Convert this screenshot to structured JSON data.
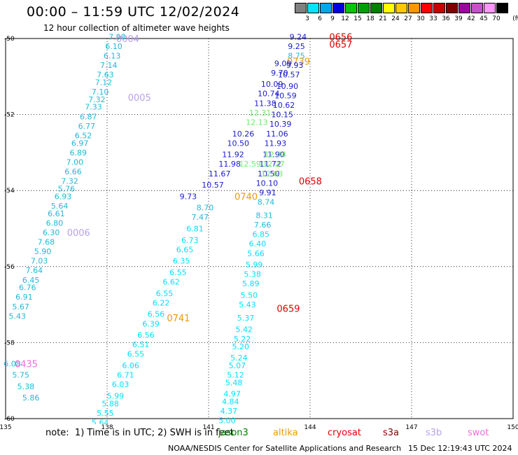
{
  "title": "00:00 – 11:59 UTC 12/02/2024",
  "subtitle": "12 hour collection of altimeter wave heights",
  "scale": {
    "unit": "(ft)",
    "bins": [
      {
        "label": "3",
        "color": "#808080"
      },
      {
        "label": "6",
        "color": "#00e5ff"
      },
      {
        "label": "9",
        "color": "#00a8e8"
      },
      {
        "label": "12",
        "color": "#0000e0"
      },
      {
        "label": "15",
        "color": "#00c800"
      },
      {
        "label": "18",
        "color": "#00a000"
      },
      {
        "label": "21",
        "color": "#008000"
      },
      {
        "label": "24",
        "color": "#ffff00"
      },
      {
        "label": "27",
        "color": "#ffc800"
      },
      {
        "label": "30",
        "color": "#ff9600"
      },
      {
        "label": "33",
        "color": "#ff0000"
      },
      {
        "label": "36",
        "color": "#c80000"
      },
      {
        "label": "39",
        "color": "#800000"
      },
      {
        "label": "42",
        "color": "#a000a0"
      },
      {
        "label": "45",
        "color": "#c850c8"
      },
      {
        "label": "70",
        "color": "#ff96ff"
      },
      {
        "label": "",
        "color": "#000000"
      }
    ]
  },
  "axes": {
    "x_ticks": [
      "135",
      "138",
      "141",
      "144",
      "147",
      "150"
    ],
    "y_ticks": [
      "-50",
      "-52",
      "-54",
      "-56",
      "-58",
      "-60"
    ]
  },
  "colors": {
    "swh6": "#22b8d8",
    "swh3": "#00e0ff",
    "swh9": "#1a1ad0",
    "swh12": "#6aee6a",
    "time_label": "#b8a0e8",
    "time_pink": "#ee6ed8",
    "time_orange": "#ee9a00",
    "time_red": "#e00000"
  },
  "tracks": [
    {
      "id": "swot-0004",
      "color_key": "swh6",
      "time_labels": [
        {
          "text": "0004",
          "lon": 138.95,
          "lat": -50.0,
          "color_key": "time_label"
        },
        {
          "text": "0005",
          "lon": 139.3,
          "lat": -51.55,
          "color_key": "time_label"
        },
        {
          "text": "0006",
          "lon": 137.5,
          "lat": -55.1,
          "color_key": "time_label"
        }
      ],
      "readings": [
        {
          "lon": 138.55,
          "lat": -49.95,
          "value": "7.90"
        },
        {
          "lon": 138.45,
          "lat": -50.2,
          "value": "6.10"
        },
        {
          "lon": 138.4,
          "lat": -50.45,
          "value": "6.13"
        },
        {
          "lon": 138.3,
          "lat": -50.7,
          "value": "7.14"
        },
        {
          "lon": 138.2,
          "lat": -50.95,
          "value": "7.63"
        },
        {
          "lon": 138.15,
          "lat": -51.15,
          "value": "7.12"
        },
        {
          "lon": 138.05,
          "lat": -51.4,
          "value": "7.10"
        },
        {
          "lon": 137.95,
          "lat": -51.6,
          "value": "7.32"
        },
        {
          "lon": 137.85,
          "lat": -51.8,
          "value": "7.33"
        },
        {
          "lon": 137.7,
          "lat": -52.05,
          "value": "6.87"
        },
        {
          "lon": 137.65,
          "lat": -52.3,
          "value": "6.77"
        },
        {
          "lon": 137.55,
          "lat": -52.55,
          "value": "6.52"
        },
        {
          "lon": 137.45,
          "lat": -52.75,
          "value": "6.97"
        },
        {
          "lon": 137.4,
          "lat": -53.0,
          "value": "6.89"
        },
        {
          "lon": 137.3,
          "lat": -53.25,
          "value": "7.00"
        },
        {
          "lon": 137.25,
          "lat": -53.5,
          "value": "6.66"
        },
        {
          "lon": 137.15,
          "lat": -53.75,
          "value": "7.32"
        },
        {
          "lon": 137.05,
          "lat": -53.95,
          "value": "5.76"
        },
        {
          "lon": 136.95,
          "lat": -54.15,
          "value": "6.93"
        },
        {
          "lon": 136.85,
          "lat": -54.4,
          "value": "5.64"
        },
        {
          "lon": 136.75,
          "lat": -54.6,
          "value": "6.61"
        },
        {
          "lon": 136.7,
          "lat": -54.85,
          "value": "6.80"
        },
        {
          "lon": 136.6,
          "lat": -55.1,
          "value": "6.30"
        },
        {
          "lon": 136.45,
          "lat": -55.35,
          "value": "7.68"
        },
        {
          "lon": 136.35,
          "lat": -55.6,
          "value": "5.90"
        },
        {
          "lon": 136.25,
          "lat": -55.85,
          "value": "7.03"
        },
        {
          "lon": 136.1,
          "lat": -56.1,
          "value": "7.64"
        },
        {
          "lon": 136.0,
          "lat": -56.35,
          "value": "6.45"
        },
        {
          "lon": 135.9,
          "lat": -56.55,
          "value": "6.76"
        },
        {
          "lon": 135.8,
          "lat": -56.8,
          "value": "6.91"
        },
        {
          "lon": 135.7,
          "lat": -57.05,
          "value": "5.67"
        },
        {
          "lon": 135.6,
          "lat": -57.3,
          "value": "5.43"
        }
      ]
    },
    {
      "id": "swot-0435",
      "color_key": "swh6",
      "time_labels": [
        {
          "text": "0435",
          "lon": 135.95,
          "lat": -58.55,
          "color_key": "time_pink"
        }
      ],
      "readings": [
        {
          "lon": 135.45,
          "lat": -58.55,
          "value": "6.08"
        },
        {
          "lon": 135.7,
          "lat": -58.85,
          "value": "5.75"
        },
        {
          "lon": 135.85,
          "lat": -59.15,
          "value": "5.38"
        },
        {
          "lon": 136.0,
          "lat": -59.45,
          "value": "5.86"
        }
      ]
    },
    {
      "id": "altika-0739",
      "color_key": "swh9",
      "time_labels": [
        {
          "text": "0741",
          "lon": 140.45,
          "lat": -57.35,
          "color_key": "time_orange"
        },
        {
          "text": "0740",
          "lon": 142.45,
          "lat": -54.15,
          "color_key": "time_orange"
        },
        {
          "text": "0739",
          "lon": 144.0,
          "lat": -50.6,
          "color_key": "time_orange"
        }
      ],
      "readings": [
        {
          "lon": 140.65,
          "lat": -54.15,
          "value": "9.73"
        },
        {
          "lon": 141.15,
          "lat": -54.45,
          "value": "8.70"
        },
        {
          "lon": 141.0,
          "lat": -54.7,
          "value": "7.47"
        },
        {
          "lon": 140.85,
          "lat": -55.0,
          "value": "6.81"
        },
        {
          "lon": 140.7,
          "lat": -55.3,
          "value": "6.73"
        },
        {
          "lon": 140.55,
          "lat": -55.55,
          "value": "6.65"
        },
        {
          "lon": 140.45,
          "lat": -55.85,
          "value": "6.35"
        },
        {
          "lon": 140.35,
          "lat": -56.15,
          "value": "6.55"
        },
        {
          "lon": 140.15,
          "lat": -56.4,
          "value": "6.62"
        },
        {
          "lon": 139.95,
          "lat": -56.7,
          "value": "6.55"
        },
        {
          "lon": 139.85,
          "lat": -56.95,
          "value": "6.22"
        },
        {
          "lon": 139.7,
          "lat": -57.25,
          "value": "6.56"
        },
        {
          "lon": 139.55,
          "lat": -57.5,
          "value": "6.39"
        },
        {
          "lon": 139.4,
          "lat": -57.8,
          "value": "6.56"
        },
        {
          "lon": 139.25,
          "lat": -58.05,
          "value": "6.51"
        },
        {
          "lon": 139.1,
          "lat": -58.3,
          "value": "6.55"
        },
        {
          "lon": 138.95,
          "lat": -58.6,
          "value": "6.06"
        },
        {
          "lon": 138.8,
          "lat": -58.85,
          "value": "6.71"
        },
        {
          "lon": 138.65,
          "lat": -59.1,
          "value": "6.03"
        },
        {
          "lon": 138.5,
          "lat": -59.4,
          "value": "5.99"
        },
        {
          "lon": 138.35,
          "lat": -59.6,
          "value": "5.88"
        },
        {
          "lon": 138.2,
          "lat": -59.85,
          "value": "5.55"
        },
        {
          "lon": 138.05,
          "lat": -60.1,
          "value": "5.64"
        },
        {
          "lon": 137.95,
          "lat": -60.3,
          "value": "5.52"
        },
        {
          "lon": 137.8,
          "lat": -60.55,
          "value": "4.64"
        }
      ]
    },
    {
      "id": "altika-0739-upper",
      "color_key": "swh9",
      "time_labels": [],
      "readings": [
        {
          "lon": 141.45,
          "lat": -53.85,
          "value": "10.57"
        },
        {
          "lon": 141.65,
          "lat": -53.55,
          "value": "11.67"
        },
        {
          "lon": 141.95,
          "lat": -53.3,
          "value": "11.98"
        },
        {
          "lon": 142.05,
          "lat": -53.05,
          "value": "11.92"
        },
        {
          "lon": 142.2,
          "lat": -52.75,
          "value": "10.50"
        },
        {
          "lon": 142.35,
          "lat": -52.5,
          "value": "10.26"
        },
        {
          "lon": 142.75,
          "lat": -52.2,
          "value": "12.13"
        },
        {
          "lon": 142.85,
          "lat": -51.95,
          "value": "12.31"
        },
        {
          "lon": 143.0,
          "lat": -51.7,
          "value": "11.38"
        },
        {
          "lon": 143.1,
          "lat": -51.45,
          "value": "10.74"
        },
        {
          "lon": 143.2,
          "lat": -51.2,
          "value": "10.09"
        },
        {
          "lon": 143.35,
          "lat": -50.9,
          "value": "9.70"
        },
        {
          "lon": 143.45,
          "lat": -50.65,
          "value": "9.09"
        }
      ]
    },
    {
      "id": "cryosat-0657",
      "color_key": "swh9",
      "time_labels": [
        {
          "text": "0656",
          "lon": 145.25,
          "lat": -49.95,
          "color_key": "time_red"
        },
        {
          "text": "0657",
          "lon": 145.25,
          "lat": -50.15,
          "color_key": "time_red"
        },
        {
          "text": "0658",
          "lon": 144.35,
          "lat": -53.75,
          "color_key": "time_red"
        },
        {
          "text": "0659",
          "lon": 143.7,
          "lat": -57.1,
          "color_key": "time_red"
        }
      ],
      "readings": [
        {
          "lon": 143.9,
          "lat": -49.95,
          "value": "9.24"
        },
        {
          "lon": 143.85,
          "lat": -50.2,
          "value": "9.25"
        },
        {
          "lon": 143.85,
          "lat": -50.45,
          "value": "8.75"
        },
        {
          "lon": 143.8,
          "lat": -50.7,
          "value": "9.93"
        },
        {
          "lon": 143.7,
          "lat": -50.95,
          "value": "10.57"
        },
        {
          "lon": 143.65,
          "lat": -51.25,
          "value": "10.90"
        },
        {
          "lon": 143.6,
          "lat": -51.5,
          "value": "10.59"
        },
        {
          "lon": 143.55,
          "lat": -51.75,
          "value": "10.62"
        },
        {
          "lon": 143.5,
          "lat": -52.0,
          "value": "10.15"
        },
        {
          "lon": 143.45,
          "lat": -52.25,
          "value": "10.39"
        },
        {
          "lon": 143.35,
          "lat": -52.5,
          "value": "11.06"
        },
        {
          "lon": 143.3,
          "lat": -52.75,
          "value": "11.93"
        },
        {
          "lon": 143.25,
          "lat": -53.05,
          "value": "11.90"
        },
        {
          "lon": 143.15,
          "lat": -53.3,
          "value": "11.72"
        },
        {
          "lon": 143.1,
          "lat": -53.55,
          "value": "10.50"
        },
        {
          "lon": 143.05,
          "lat": -53.8,
          "value": "10.10"
        },
        {
          "lon": 143.0,
          "lat": -54.05,
          "value": "9.91"
        },
        {
          "lon": 142.95,
          "lat": -54.3,
          "value": "8.74"
        },
        {
          "lon": 142.9,
          "lat": -54.65,
          "value": "8.31"
        },
        {
          "lon": 142.85,
          "lat": -54.9,
          "value": "7.66"
        },
        {
          "lon": 142.8,
          "lat": -55.15,
          "value": "6.85"
        },
        {
          "lon": 142.7,
          "lat": -55.4,
          "value": "6.40"
        },
        {
          "lon": 142.65,
          "lat": -55.65,
          "value": "5.66"
        },
        {
          "lon": 142.6,
          "lat": -55.95,
          "value": "5.99"
        },
        {
          "lon": 142.55,
          "lat": -56.2,
          "value": "5.38"
        },
        {
          "lon": 142.5,
          "lat": -56.45,
          "value": "5.89"
        },
        {
          "lon": 142.45,
          "lat": -56.75,
          "value": "5.50"
        },
        {
          "lon": 142.4,
          "lat": -57.0,
          "value": "5.43"
        },
        {
          "lon": 142.35,
          "lat": -57.35,
          "value": "5.37"
        },
        {
          "lon": 142.3,
          "lat": -57.65,
          "value": "5.42"
        },
        {
          "lon": 142.25,
          "lat": -57.9,
          "value": "5.22"
        },
        {
          "lon": 142.2,
          "lat": -58.1,
          "value": "5.20"
        },
        {
          "lon": 142.15,
          "lat": -58.4,
          "value": "5.24"
        },
        {
          "lon": 142.1,
          "lat": -58.6,
          "value": "5.07"
        },
        {
          "lon": 142.05,
          "lat": -58.85,
          "value": "5.12"
        },
        {
          "lon": 142.0,
          "lat": -59.05,
          "value": "5.48"
        },
        {
          "lon": 141.95,
          "lat": -59.35,
          "value": "4.97"
        },
        {
          "lon": 141.9,
          "lat": -59.55,
          "value": "4.84"
        },
        {
          "lon": 141.85,
          "lat": -59.8,
          "value": "4.37"
        },
        {
          "lon": 141.8,
          "lat": -60.05,
          "value": "5.00"
        },
        {
          "lon": 141.75,
          "lat": -60.3,
          "value": "4.71"
        },
        {
          "lon": 141.7,
          "lat": -60.5,
          "value": "4.47"
        }
      ]
    },
    {
      "id": "cryosat-upper-green",
      "color_key": "swh12",
      "time_labels": [],
      "readings": [
        {
          "lon": 142.55,
          "lat": -53.3,
          "value": "12.59"
        },
        {
          "lon": 143.3,
          "lat": -53.05,
          "value": "12.44"
        },
        {
          "lon": 143.25,
          "lat": -53.3,
          "value": "12.27"
        },
        {
          "lon": 143.2,
          "lat": -53.55,
          "value": "12.63"
        }
      ]
    }
  ],
  "note": "note:  1) Time is in UTC; 2) SWH is in feet",
  "legend": [
    {
      "label": "jason3",
      "color": "#008000"
    },
    {
      "label": "altika",
      "color": "#ee9a00"
    },
    {
      "label": "cryosat",
      "color": "#e00000"
    },
    {
      "label": "s3a",
      "color": "#800000"
    },
    {
      "label": "s3b",
      "color": "#b8a0e8"
    },
    {
      "label": "swot",
      "color": "#ee6ed8"
    }
  ],
  "credit": "NOAA/NESDIS Center for Satellite Applications and Research",
  "timestamp": "15 Dec 12:19:43 UTC 2024"
}
